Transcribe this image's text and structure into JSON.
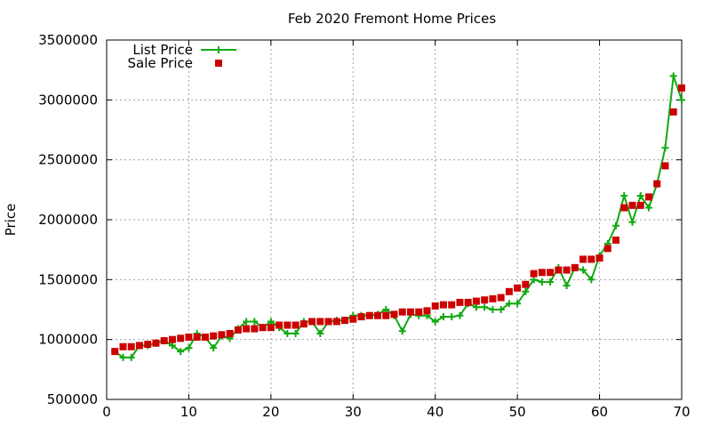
{
  "chart_data": {
    "type": "line",
    "title": "Feb 2020 Fremont Home Prices",
    "xlabel": "",
    "ylabel": "Price",
    "xlim": [
      0,
      70
    ],
    "ylim": [
      500000,
      3500000
    ],
    "xticks": [
      0,
      10,
      20,
      30,
      40,
      50,
      60,
      70
    ],
    "yticks": [
      500000,
      1000000,
      1500000,
      2000000,
      2500000,
      3000000,
      3500000
    ],
    "xtick_labels": [
      "0",
      "10",
      "20",
      "30",
      "40",
      "50",
      "60",
      "70"
    ],
    "ytick_labels": [
      "500000",
      "1000000",
      "1500000",
      "2000000",
      "2500000",
      "3000000",
      "3500000"
    ],
    "grid": true,
    "legend_position": "top-left",
    "series": [
      {
        "name": "List Price",
        "style": "line-with-plus-markers",
        "color": "#11a911",
        "x": [
          1,
          2,
          3,
          4,
          5,
          6,
          7,
          8,
          9,
          10,
          11,
          12,
          13,
          14,
          15,
          16,
          17,
          18,
          19,
          20,
          21,
          22,
          23,
          24,
          25,
          26,
          27,
          28,
          29,
          30,
          31,
          32,
          33,
          34,
          35,
          36,
          37,
          38,
          39,
          40,
          41,
          42,
          43,
          44,
          45,
          46,
          47,
          48,
          49,
          50,
          51,
          52,
          53,
          54,
          55,
          56,
          57,
          58,
          59,
          60,
          61,
          62,
          63,
          64,
          65,
          66,
          67,
          68,
          69,
          70
        ],
        "y": [
          900000,
          850000,
          850000,
          950000,
          950000,
          970000,
          990000,
          950000,
          900000,
          930000,
          1050000,
          1020000,
          930000,
          1030000,
          1010000,
          1090000,
          1150000,
          1150000,
          1100000,
          1150000,
          1100000,
          1050000,
          1050000,
          1150000,
          1150000,
          1050000,
          1150000,
          1160000,
          1160000,
          1200000,
          1200000,
          1200000,
          1210000,
          1250000,
          1200000,
          1070000,
          1210000,
          1200000,
          1200000,
          1150000,
          1190000,
          1190000,
          1200000,
          1300000,
          1270000,
          1270000,
          1250000,
          1250000,
          1300000,
          1300000,
          1400000,
          1500000,
          1480000,
          1480000,
          1600000,
          1450000,
          1600000,
          1580000,
          1500000,
          1700000,
          1800000,
          1950000,
          2200000,
          1980000,
          2200000,
          2100000,
          2300000,
          2600000,
          3200000,
          3000000
        ]
      },
      {
        "name": "Sale Price",
        "style": "square-markers",
        "color": "#cc0000",
        "x": [
          1,
          2,
          3,
          4,
          5,
          6,
          7,
          8,
          9,
          10,
          11,
          12,
          13,
          14,
          15,
          16,
          17,
          18,
          19,
          20,
          21,
          22,
          23,
          24,
          25,
          26,
          27,
          28,
          29,
          30,
          31,
          32,
          33,
          34,
          35,
          36,
          37,
          38,
          39,
          40,
          41,
          42,
          43,
          44,
          45,
          46,
          47,
          48,
          49,
          50,
          51,
          52,
          53,
          54,
          55,
          56,
          57,
          58,
          59,
          60,
          61,
          62,
          63,
          64,
          65,
          66,
          67,
          68,
          69,
          70
        ],
        "y": [
          900000,
          940000,
          940000,
          950000,
          960000,
          970000,
          990000,
          1000000,
          1010000,
          1020000,
          1020000,
          1020000,
          1030000,
          1040000,
          1050000,
          1080000,
          1090000,
          1090000,
          1100000,
          1100000,
          1120000,
          1120000,
          1120000,
          1130000,
          1150000,
          1150000,
          1150000,
          1150000,
          1160000,
          1170000,
          1190000,
          1200000,
          1200000,
          1200000,
          1210000,
          1230000,
          1230000,
          1230000,
          1240000,
          1280000,
          1290000,
          1290000,
          1310000,
          1310000,
          1320000,
          1330000,
          1340000,
          1350000,
          1400000,
          1430000,
          1460000,
          1550000,
          1560000,
          1560000,
          1580000,
          1580000,
          1600000,
          1670000,
          1670000,
          1680000,
          1760000,
          1830000,
          2100000,
          2120000,
          2120000,
          2190000,
          2300000,
          2450000,
          2900000,
          3100000
        ]
      }
    ]
  }
}
